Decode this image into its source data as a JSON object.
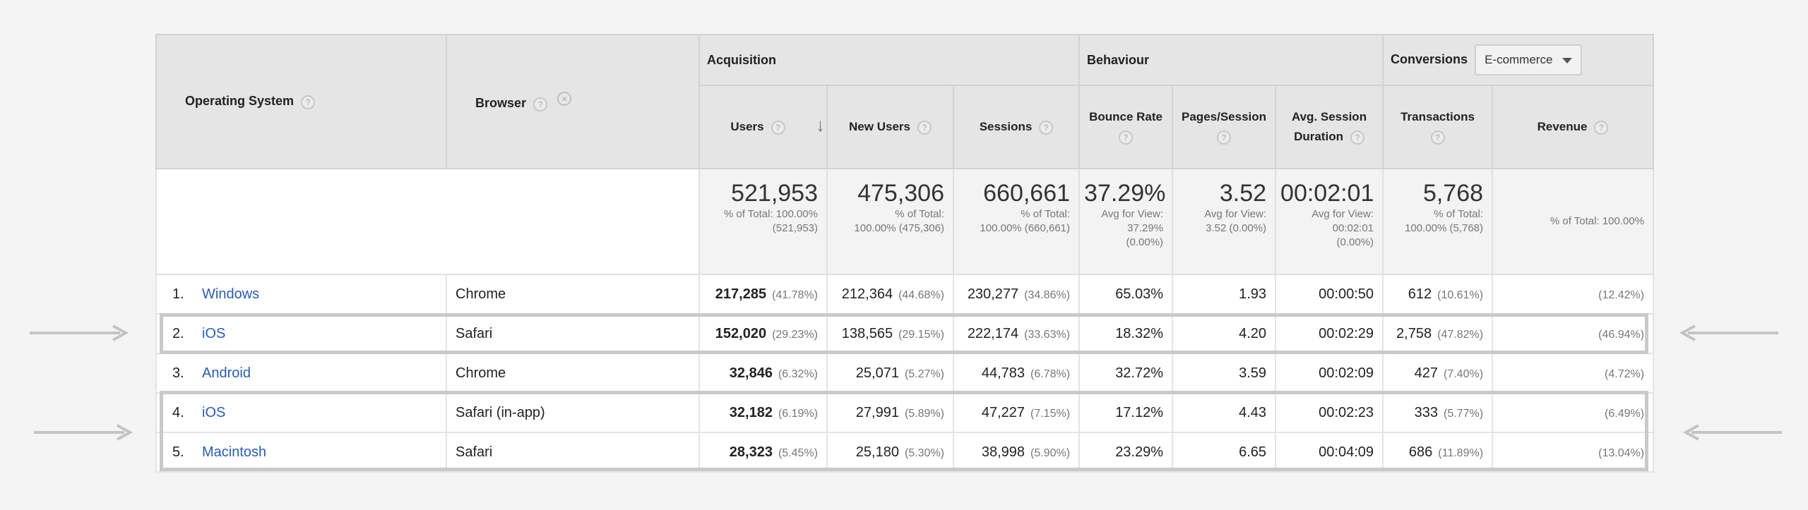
{
  "headers": {
    "operating_system": "Operating System",
    "browser": "Browser",
    "acquisition": "Acquisition",
    "behaviour": "Behaviour",
    "conversions": "Conversions",
    "conversions_select": "E-commerce",
    "users": "Users",
    "new_users": "New Users",
    "sessions": "Sessions",
    "bounce_rate": "Bounce Rate",
    "pages_session": "Pages/Session",
    "avg_session_line1": "Avg. Session",
    "avg_session_line2": "Duration",
    "transactions": "Transactions",
    "revenue": "Revenue",
    "help_glyph": "?",
    "remove_glyph": "×",
    "sort_glyph": "↓"
  },
  "totals": {
    "users": {
      "value": "521,953",
      "line1": "% of Total: 100.00%",
      "line2": "(521,953)"
    },
    "new_users": {
      "value": "475,306",
      "line1": "% of Total:",
      "line2": "100.00% (475,306)"
    },
    "sessions": {
      "value": "660,661",
      "line1": "% of Total:",
      "line2": "100.00% (660,661)"
    },
    "bounce_rate": {
      "value": "37.29%",
      "line1": "Avg for View:",
      "line2": "37.29%",
      "line3": "(0.00%)"
    },
    "pages_session": {
      "value": "3.52",
      "line1": "Avg for View:",
      "line2": "3.52 (0.00%)"
    },
    "avg_session": {
      "value": "00:02:01",
      "line1": "Avg for View:",
      "line2": "00:02:01",
      "line3": "(0.00%)"
    },
    "transactions": {
      "value": "5,768",
      "line1": "% of Total:",
      "line2": "100.00% (5,768)"
    },
    "revenue": {
      "line1": "% of Total: 100.00%"
    }
  },
  "rows": [
    {
      "index": "1.",
      "os": "Windows",
      "browser": "Chrome",
      "users": "217,285",
      "users_pct": "(41.78%)",
      "new_users": "212,364",
      "new_users_pct": "(44.68%)",
      "sessions": "230,277",
      "sessions_pct": "(34.86%)",
      "bounce_rate": "65.03%",
      "pages_session": "1.93",
      "avg_session": "00:00:50",
      "transactions": "612",
      "transactions_pct": "(10.61%)",
      "revenue_pct": "(12.42%)"
    },
    {
      "index": "2.",
      "os": "iOS",
      "browser": "Safari",
      "users": "152,020",
      "users_pct": "(29.23%)",
      "new_users": "138,565",
      "new_users_pct": "(29.15%)",
      "sessions": "222,174",
      "sessions_pct": "(33.63%)",
      "bounce_rate": "18.32%",
      "pages_session": "4.20",
      "avg_session": "00:02:29",
      "transactions": "2,758",
      "transactions_pct": "(47.82%)",
      "revenue_pct": "(46.94%)"
    },
    {
      "index": "3.",
      "os": "Android",
      "browser": "Chrome",
      "users": "32,846",
      "users_pct": "(6.32%)",
      "new_users": "25,071",
      "new_users_pct": "(5.27%)",
      "sessions": "44,783",
      "sessions_pct": "(6.78%)",
      "bounce_rate": "32.72%",
      "pages_session": "3.59",
      "avg_session": "00:02:09",
      "transactions": "427",
      "transactions_pct": "(7.40%)",
      "revenue_pct": "(4.72%)"
    },
    {
      "index": "4.",
      "os": "iOS",
      "browser": "Safari (in-app)",
      "users": "32,182",
      "users_pct": "(6.19%)",
      "new_users": "27,991",
      "new_users_pct": "(5.89%)",
      "sessions": "47,227",
      "sessions_pct": "(7.15%)",
      "bounce_rate": "17.12%",
      "pages_session": "4.43",
      "avg_session": "00:02:23",
      "transactions": "333",
      "transactions_pct": "(5.77%)",
      "revenue_pct": "(6.49%)"
    },
    {
      "index": "5.",
      "os": "Macintosh",
      "browser": "Safari",
      "users": "28,323",
      "users_pct": "(5.45%)",
      "new_users": "25,180",
      "new_users_pct": "(5.30%)",
      "sessions": "38,998",
      "sessions_pct": "(5.90%)",
      "bounce_rate": "23.29%",
      "pages_session": "6.65",
      "avg_session": "00:04:09",
      "transactions": "686",
      "transactions_pct": "(11.89%)",
      "revenue_pct": "(13.04%)"
    }
  ],
  "colors": {
    "link": "#2a5db0",
    "header_bg": "#e5e5e5",
    "highlight": "#c9c9c9"
  }
}
